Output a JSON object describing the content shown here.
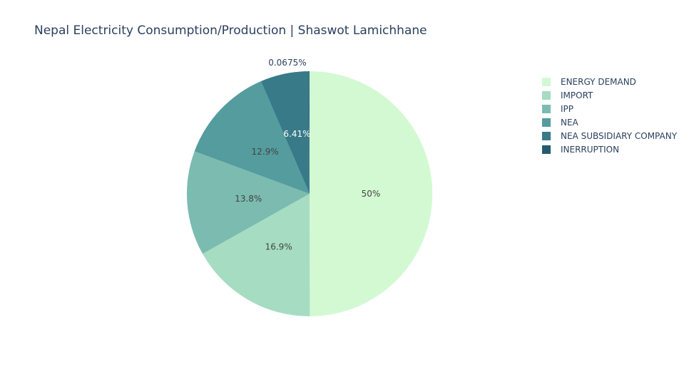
{
  "chart_data": {
    "type": "pie",
    "title": "Nepal Electricity Consumption/Production | Shaswot Lamichhane",
    "categories": [
      "ENERGY DEMAND",
      "IMPORT",
      "IPP",
      "NEA",
      "NEA SUBSIDIARY COMPANY",
      "INERRUPTION"
    ],
    "values": [
      50,
      16.9,
      13.8,
      12.9,
      6.41,
      0.0675
    ],
    "labels": [
      "50%",
      "16.9%",
      "13.8%",
      "12.9%",
      "6.41%",
      "0.0675%"
    ],
    "colors": [
      "#d3f9d3",
      "#a6dcc2",
      "#7bbbb0",
      "#549c9e",
      "#387a88",
      "#235b6c"
    ],
    "label_colors": [
      "#444444",
      "#444444",
      "#444444",
      "#444444",
      "#ffffff",
      "#2a3f5f"
    ],
    "legend_position": "top-right",
    "direction": "clockwise",
    "start": "top"
  }
}
